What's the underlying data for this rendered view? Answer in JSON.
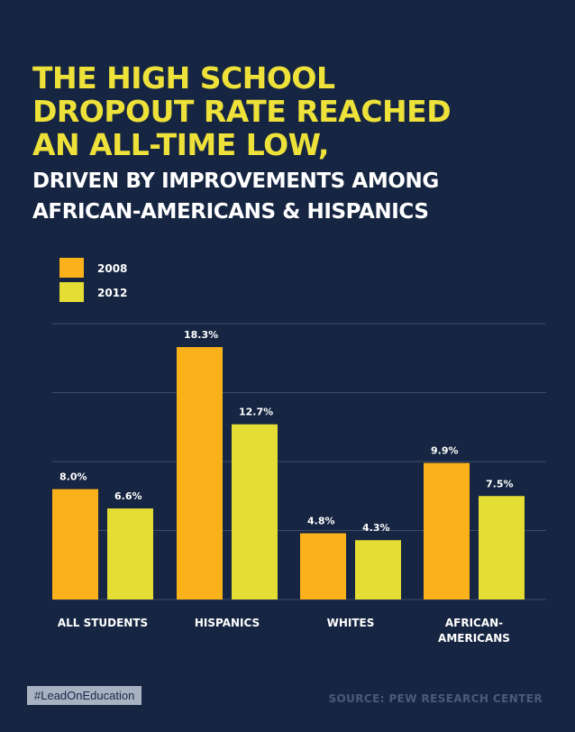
{
  "headline": {
    "lines": [
      "THE HIGH SCHOOL",
      "DROPOUT RATE REACHED",
      "AN ALL-TIME LOW,"
    ]
  },
  "subheadline": {
    "lines": [
      "DRIVEN BY IMPROVEMENTS AMONG",
      "AFRICAN-AMERICANS & HISPANICS"
    ]
  },
  "colors": {
    "background": "#162541",
    "headline": "#ede13a",
    "series_2008": "#fbb11a",
    "series_2012": "#e4dd34",
    "gridline": "#3e4b66"
  },
  "chart_data": {
    "type": "bar",
    "title": "",
    "xlabel": "",
    "ylabel": "",
    "ylim": [
      0,
      20
    ],
    "grid": true,
    "legend_position": "top-left",
    "categories": [
      "ALL STUDENTS",
      "HISPANICS",
      "WHITES",
      "AFRICAN-\nAMERICANS"
    ],
    "series": [
      {
        "name": "2008",
        "values": [
          8.0,
          18.3,
          4.8,
          9.9
        ],
        "labels": [
          "8.0%",
          "18.3%",
          "4.8%",
          "9.9%"
        ]
      },
      {
        "name": "2012",
        "values": [
          6.6,
          12.7,
          4.3,
          7.5
        ],
        "labels": [
          "6.6%",
          "12.7%",
          "4.3%",
          "7.5%"
        ]
      }
    ]
  },
  "footer": {
    "hashtag": "#LeadOnEducation",
    "source": "SOURCE: PEW RESEARCH CENTER"
  }
}
